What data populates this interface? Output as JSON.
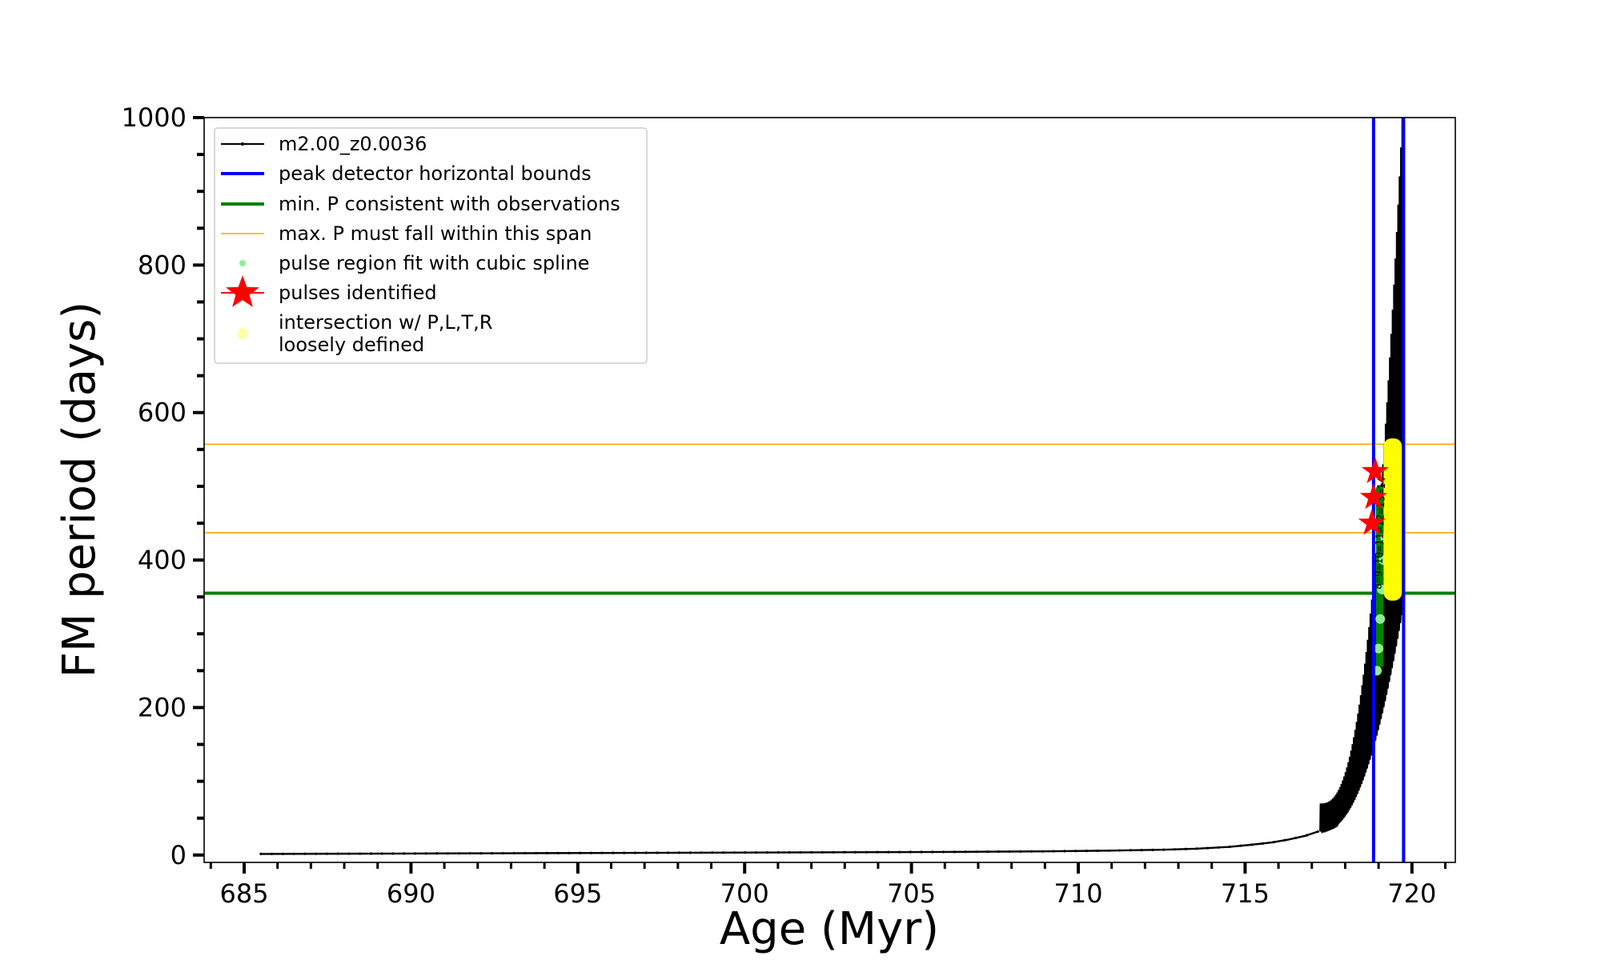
{
  "chart_data": {
    "type": "line",
    "xlabel": "Age (Myr)",
    "ylabel": "FM period (days)",
    "xlim": [
      683.8,
      721.3
    ],
    "ylim": [
      -10,
      1000
    ],
    "xticks": [
      685,
      690,
      695,
      700,
      705,
      710,
      715,
      720
    ],
    "yticks": [
      0,
      200,
      400,
      600,
      800,
      1000
    ],
    "grid": false,
    "legend_position": "top-left",
    "legend": [
      {
        "key": "track",
        "label": "m2.00_z0.0036",
        "color": "#000000",
        "marker": "line-dot"
      },
      {
        "key": "bounds",
        "label": "peak detector horizontal bounds",
        "color": "#0000ff",
        "marker": "line"
      },
      {
        "key": "minp",
        "label": "min. P consistent with observations",
        "color": "#008000",
        "marker": "line"
      },
      {
        "key": "maxp",
        "label": "max. P must fall within this span",
        "color": "#ffa500",
        "marker": "thin-line"
      },
      {
        "key": "spline",
        "label": "pulse region fit with cubic spline",
        "color": "#90ee90",
        "marker": "dot"
      },
      {
        "key": "pulses",
        "label": "pulses identified",
        "color": "#ff0000",
        "marker": "star"
      },
      {
        "key": "intersect",
        "label": [
          "intersection w/ P,L,T,R",
          "loosely defined"
        ],
        "color": "#ffffaa",
        "marker": "dot"
      }
    ],
    "series": [
      {
        "name": "m2.00_z0.0036",
        "color": "#000000",
        "baseline": {
          "x": [
            685.5,
            688,
            691,
            694,
            697,
            700,
            703,
            706,
            709,
            711,
            712.5,
            713.5,
            714.5,
            715.2,
            715.8,
            716.3,
            716.8,
            717.2
          ],
          "y": [
            1.5,
            1.8,
            2.2,
            2.6,
            3.0,
            3.4,
            3.8,
            4.2,
            5.0,
            6.0,
            7.2,
            8.5,
            11,
            14,
            17,
            21,
            26,
            32
          ]
        },
        "pulses_start": 717.25,
        "pulses_end": 719.7,
        "pulse_count": 60,
        "pulse_base_start": 32,
        "pulse_base_end": 330,
        "pulse_peak_start": 70,
        "pulse_peak_end": 1000
      }
    ],
    "vlines": [
      {
        "x": 718.85,
        "ymin": -10,
        "ymax": 1000,
        "color": "#0000ff",
        "name": "peak detector horizontal bounds"
      },
      {
        "x": 719.75,
        "ymin": -10,
        "ymax": 1000,
        "color": "#0000ff",
        "name": "peak detector horizontal bounds"
      }
    ],
    "hlines": [
      {
        "y": 355,
        "color": "#008000",
        "name": "min. P consistent with observations"
      },
      {
        "y": 437,
        "color": "#ffa500",
        "name": "max. P must fall within this span"
      },
      {
        "y": 557,
        "color": "#ffa500",
        "name": "max. P must fall within this span"
      }
    ],
    "spline_points": {
      "x": [
        718.95,
        719.0,
        719.05,
        719.1,
        719.15,
        719.2
      ],
      "y": [
        250,
        280,
        320,
        360,
        400,
        430
      ]
    },
    "green_region": {
      "x0": 718.92,
      "x1": 719.15,
      "y0": 255,
      "y1": 500
    },
    "yellow_region": {
      "x0": 719.15,
      "x1": 719.7,
      "y0": 345,
      "y1": 565
    },
    "pulses_identified": {
      "x": [
        718.8,
        718.85,
        718.9
      ],
      "y": [
        450,
        485,
        520
      ]
    },
    "pulse_labels": "8=9=10=11=12=13=14"
  }
}
